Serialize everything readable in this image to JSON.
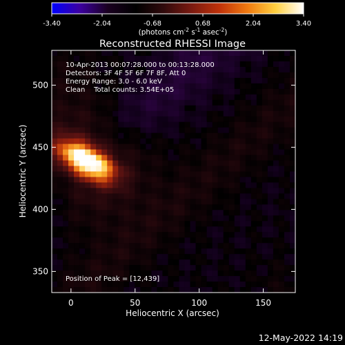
{
  "colorbar": {
    "ticks": [
      "-3.40",
      "-2.04",
      "-0.68",
      "0.68",
      "2.04",
      "3.40"
    ],
    "unit_main": "(photons cm",
    "unit_sup1": "-2",
    "unit_s": " s",
    "unit_sup2": "-1",
    "unit_asec": " asec",
    "unit_sup3": "-2",
    "unit_close": ")",
    "range": [
      -3.4,
      3.4
    ],
    "colors": [
      "#0000ff",
      "#3c00a0",
      "#1a0020",
      "#000000",
      "#300a0c",
      "#7a1a10",
      "#c0320a",
      "#f07a10",
      "#ffd040",
      "#ffffff"
    ]
  },
  "chart_data": {
    "type": "heatmap",
    "title": "Reconstructed RHESSI Image",
    "xlabel": "Heliocentric X (arcsec)",
    "ylabel": "Heliocentric Y (arcsec)",
    "xlim": [
      -15,
      175
    ],
    "ylim": [
      333,
      528
    ],
    "x_ticks": [
      0,
      50,
      100,
      150
    ],
    "y_ticks": [
      350,
      400,
      450,
      500
    ],
    "peak": {
      "x": 12,
      "y": 439,
      "value": 3.4
    },
    "info_lines": [
      "10-Apr-2013 00:07:28.000 to 00:13:28.000",
      "Detectors: 3F 4F 5F 6F 7F 8F, Att 0",
      "Energy Range: 3.0 - 6.0 keV",
      "Clean    Total counts: 3.54E+05"
    ],
    "peak_label": "Position of Peak = [12,439]"
  },
  "footer": {
    "timestamp": "12-May-2022 14:19"
  }
}
